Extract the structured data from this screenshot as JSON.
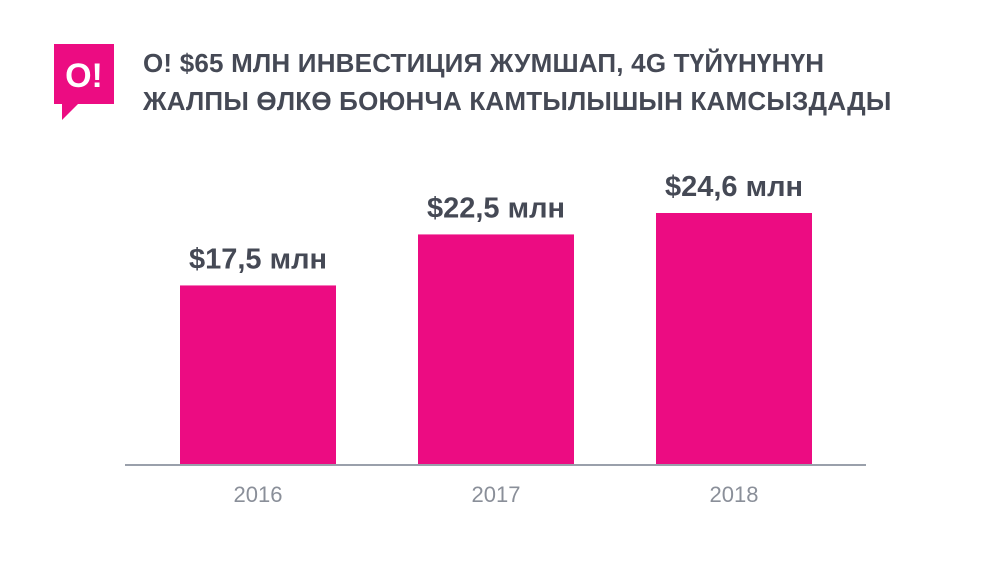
{
  "logo": {
    "text": "O!",
    "color": "#ec0c82"
  },
  "header": {
    "title_line1": "O! $65 МЛН ИНВЕСТИЦИЯ ЖУМШАП, 4G ТҮЙҮНҮНҮН",
    "title_line2": "ЖАЛПЫ ӨЛКӨ БОЮНЧА КАМТЫЛЫШЫН КАМСЫЗДАДЫ"
  },
  "chart_data": {
    "type": "bar",
    "title": "O! $65 МЛН ИНВЕСТИЦИЯ ЖУМШАП, 4G ТҮЙҮНҮНҮН ЖАЛПЫ ӨЛКӨ БОЮНЧА КАМТЫЛЫШЫН КАМСЫЗДАДЫ",
    "categories": [
      "2016",
      "2017",
      "2018"
    ],
    "values": [
      17.5,
      22.5,
      24.6
    ],
    "value_labels": [
      "$17,5 млн",
      "$22,5 млн",
      "$24,6 млн"
    ],
    "xlabel": "",
    "ylabel": "",
    "ylim": [
      0,
      24.6
    ],
    "grid": false,
    "legend": "none",
    "colors": {
      "bar": "#ec0c82",
      "axis": "#9aa0ab",
      "value_text": "#454955",
      "tick_text": "#8a8f99"
    }
  }
}
